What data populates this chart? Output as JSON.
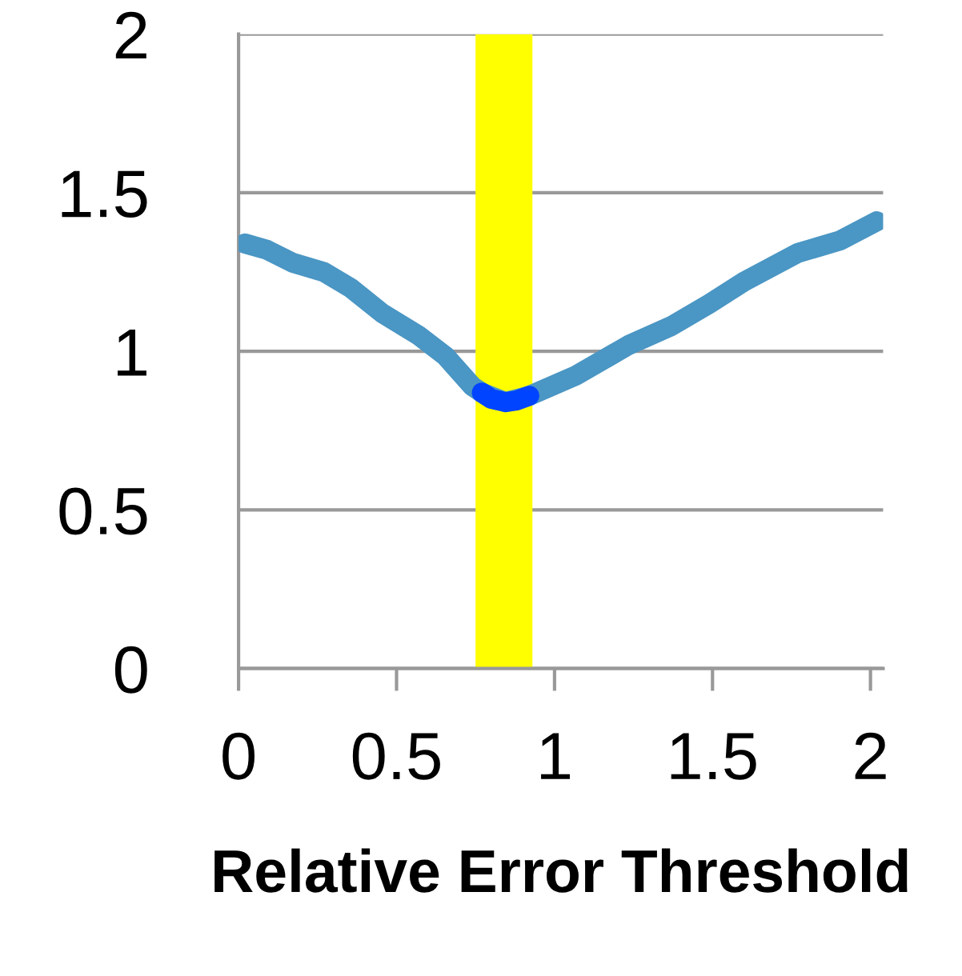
{
  "chart_data": {
    "type": "line",
    "xlabel": "Relative Error Threshold",
    "xlim": [
      0,
      2.04
    ],
    "xticks": [
      0,
      {
        "value": 0.5,
        "label": "0.5"
      },
      1,
      {
        "value": 1.5,
        "label": "1.5"
      },
      2
    ],
    "ylim": [
      0,
      2
    ],
    "yticks": [
      0,
      {
        "value": 0.5,
        "label": "0.5"
      },
      1,
      {
        "value": 1.5,
        "label": "1.5"
      },
      2
    ],
    "grid": "y",
    "line_style": "solid",
    "marker": "none",
    "bands": [
      {
        "axis": "x",
        "from": 0.75,
        "to": 0.93,
        "color": "#ffff00"
      }
    ],
    "series": [
      {
        "color": "#4a96c4",
        "x": [
          0.02,
          0.09,
          0.17,
          0.27,
          0.355,
          0.455,
          0.57,
          0.655,
          0.74,
          0.77,
          0.845,
          0.92,
          1.07,
          1.235,
          1.37,
          1.49,
          1.6,
          1.77,
          1.905,
          2.02
        ],
        "values": [
          1.34,
          1.32,
          1.28,
          1.25,
          1.2,
          1.12,
          1.05,
          0.985,
          0.89,
          0.87,
          0.84,
          0.86,
          0.925,
          1.02,
          1.08,
          1.15,
          1.22,
          1.31,
          1.35,
          1.41
        ]
      },
      {
        "color": "#0044ff",
        "x": [
          0.77,
          0.8,
          0.845,
          0.88,
          0.92
        ],
        "values": [
          0.87,
          0.85,
          0.84,
          0.845,
          0.86
        ]
      }
    ]
  }
}
